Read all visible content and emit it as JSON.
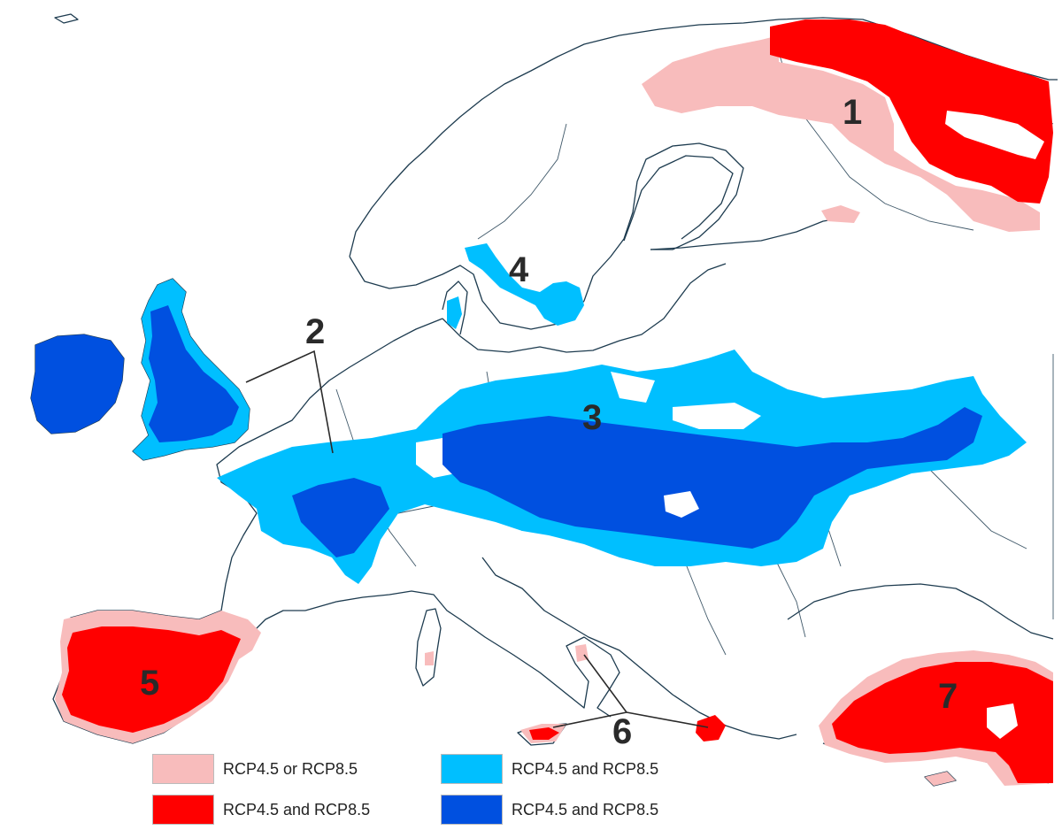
{
  "colors": {
    "light_red": "#f8bcbc",
    "red": "#ff0000",
    "light_blue": "#00bfff",
    "dark_blue": "#0050e0",
    "coastline": "#1d3b4f"
  },
  "regions": [
    {
      "id": "1",
      "label": "1"
    },
    {
      "id": "2",
      "label": "2"
    },
    {
      "id": "3",
      "label": "3"
    },
    {
      "id": "4",
      "label": "4"
    },
    {
      "id": "5",
      "label": "5"
    },
    {
      "id": "6",
      "label": "6"
    },
    {
      "id": "7",
      "label": "7"
    }
  ],
  "legend": [
    {
      "label": "RCP4.5 or RCP8.5",
      "color": "#f8bcbc"
    },
    {
      "label": "RCP4.5 and RCP8.5",
      "color": "#ff0000"
    },
    {
      "label": "RCP4.5 and RCP8.5",
      "color": "#00bfff"
    },
    {
      "label": "RCP4.5 and RCP8.5",
      "color": "#0050e0"
    }
  ]
}
